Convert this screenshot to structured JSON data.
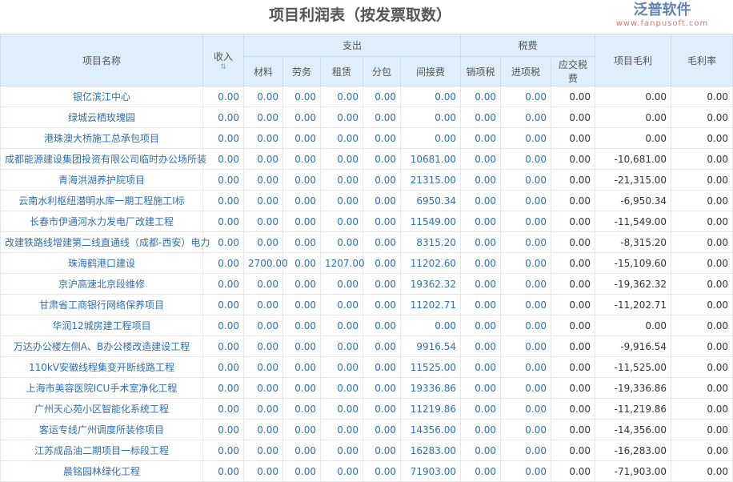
{
  "title": "项目利润表（按发票取数）",
  "headers": {
    "name": "项目名称",
    "income": "收入",
    "expense": "支出",
    "tax": "税费",
    "material": "材料",
    "labor": "劳务",
    "rent": "租赁",
    "subcontract": "分包",
    "indirect": "间接费",
    "output_tax": "销项税",
    "input_tax": "进项税",
    "payable_tax": "应交税费",
    "gross_profit": "项目毛利",
    "margin": "毛利率"
  },
  "rows": [
    [
      "银亿滨江中心",
      "0.00",
      "0.00",
      "0.00",
      "0.00",
      "0.00",
      "0.00",
      "0.00",
      "0.00",
      "0.00",
      "0.00",
      "0.00"
    ],
    [
      "绿城云栖玫瑰园",
      "0.00",
      "0.00",
      "0.00",
      "0.00",
      "0.00",
      "0.00",
      "0.00",
      "0.00",
      "0.00",
      "0.00",
      "0.00"
    ],
    [
      "港珠澳大桥施工总承包项目",
      "0.00",
      "0.00",
      "0.00",
      "0.00",
      "0.00",
      "0.00",
      "0.00",
      "0.00",
      "0.00",
      "0.00",
      "0.00"
    ],
    [
      "成都能源建设集团投资有限公司临时办公场所装",
      "0.00",
      "0.00",
      "0.00",
      "0.00",
      "0.00",
      "10681.00",
      "0.00",
      "0.00",
      "0.00",
      "-10,681.00",
      "0.00"
    ],
    [
      "青海洪湖养护院项目",
      "0.00",
      "0.00",
      "0.00",
      "0.00",
      "0.00",
      "21315.00",
      "0.00",
      "0.00",
      "0.00",
      "-21,315.00",
      "0.00"
    ],
    [
      "云南水利枢纽潜明水库一期工程施工I标",
      "0.00",
      "0.00",
      "0.00",
      "0.00",
      "0.00",
      "6950.34",
      "0.00",
      "0.00",
      "0.00",
      "-6,950.34",
      "0.00"
    ],
    [
      "长春市伊通河水力发电厂改建工程",
      "0.00",
      "0.00",
      "0.00",
      "0.00",
      "0.00",
      "11549.00",
      "0.00",
      "0.00",
      "0.00",
      "-11,549.00",
      "0.00"
    ],
    [
      "改建铁路线增建第二线直通线（成都-西安）电力",
      "0.00",
      "0.00",
      "0.00",
      "0.00",
      "0.00",
      "8315.20",
      "0.00",
      "0.00",
      "0.00",
      "-8,315.20",
      "0.00"
    ],
    [
      "珠海鹤港口建设",
      "0.00",
      "2700.00",
      "0.00",
      "1207.00",
      "0.00",
      "11202.60",
      "0.00",
      "0.00",
      "0.00",
      "-15,109.60",
      "0.00"
    ],
    [
      "京沪高速北京段维修",
      "0.00",
      "0.00",
      "0.00",
      "0.00",
      "0.00",
      "19362.32",
      "0.00",
      "0.00",
      "0.00",
      "-19,362.32",
      "0.00"
    ],
    [
      "甘肃省工商银行网络保养项目",
      "0.00",
      "0.00",
      "0.00",
      "0.00",
      "0.00",
      "11202.71",
      "0.00",
      "0.00",
      "0.00",
      "-11,202.71",
      "0.00"
    ],
    [
      "华润12城房建工程项目",
      "0.00",
      "0.00",
      "0.00",
      "0.00",
      "0.00",
      "0.00",
      "0.00",
      "0.00",
      "0.00",
      "0.00",
      "0.00"
    ],
    [
      "万达办公楼左侧A、B办公楼改造建设工程",
      "0.00",
      "0.00",
      "0.00",
      "0.00",
      "0.00",
      "9916.54",
      "0.00",
      "0.00",
      "0.00",
      "-9,916.54",
      "0.00"
    ],
    [
      "110kV安徽线程集变开断线路工程",
      "0.00",
      "0.00",
      "0.00",
      "0.00",
      "0.00",
      "11525.00",
      "0.00",
      "0.00",
      "0.00",
      "-11,525.00",
      "0.00"
    ],
    [
      "上海市美容医院ICU手术室净化工程",
      "0.00",
      "0.00",
      "0.00",
      "0.00",
      "0.00",
      "19336.86",
      "0.00",
      "0.00",
      "0.00",
      "-19,336.86",
      "0.00"
    ],
    [
      "广州天心苑小区智能化系统工程",
      "0.00",
      "0.00",
      "0.00",
      "0.00",
      "0.00",
      "11219.86",
      "0.00",
      "0.00",
      "0.00",
      "-11,219.86",
      "0.00"
    ],
    [
      "客运专线广州调度所装修项目",
      "0.00",
      "0.00",
      "0.00",
      "0.00",
      "0.00",
      "14356.00",
      "0.00",
      "0.00",
      "0.00",
      "-14,356.00",
      "0.00"
    ],
    [
      "江苏成品油二期项目一标段工程",
      "0.00",
      "0.00",
      "0.00",
      "0.00",
      "0.00",
      "16283.00",
      "0.00",
      "0.00",
      "0.00",
      "-16,283.00",
      "0.00"
    ],
    [
      "晨铭园林绿化工程",
      "0.00",
      "0.00",
      "0.00",
      "0.00",
      "0.00",
      "71903.00",
      "0.00",
      "0.00",
      "0.00",
      "-71,903.00",
      "0.00"
    ]
  ],
  "watermark": {
    "name": "泛普软件",
    "url": "www.fanpusoft.com"
  },
  "colors": {
    "header_bg": "#deeefb",
    "link": "#2e6fb0"
  }
}
